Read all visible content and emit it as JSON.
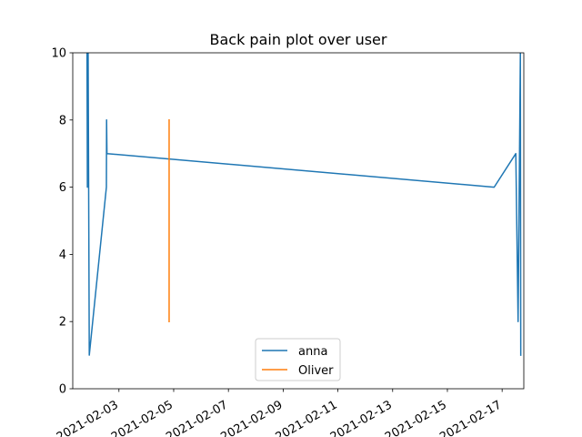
{
  "chart_data": {
    "type": "line",
    "title": "Back pain plot over user",
    "xlabel": "",
    "ylabel": "",
    "xlim": [
      "2021-02-01T07:30",
      "2021-02-17T19:00"
    ],
    "ylim": [
      0,
      10
    ],
    "x_tick_labels": [
      "2021-02-03",
      "2021-02-05",
      "2021-02-07",
      "2021-02-09",
      "2021-02-11",
      "2021-02-13",
      "2021-02-15",
      "2021-02-17"
    ],
    "y_tick_labels": [
      "0",
      "2",
      "4",
      "6",
      "8",
      "10"
    ],
    "y_ticks": [
      0,
      2,
      4,
      6,
      8,
      10
    ],
    "grid": false,
    "legend_position": "lower center",
    "series": [
      {
        "name": "anna",
        "color": "#1f77b4",
        "points": [
          [
            "2021-02-01T20:00",
            10
          ],
          [
            "2021-02-01T20:20",
            6
          ],
          [
            "2021-02-01T21:00",
            10
          ],
          [
            "2021-02-01T22:00",
            1
          ],
          [
            "2021-02-02T13:00",
            6
          ],
          [
            "2021-02-02T13:10",
            8
          ],
          [
            "2021-02-02T13:30",
            7
          ],
          [
            "2021-02-16T17:00",
            6
          ],
          [
            "2021-02-17T12:00",
            7
          ],
          [
            "2021-02-17T14:00",
            2
          ],
          [
            "2021-02-17T15:00",
            6
          ],
          [
            "2021-02-17T16:00",
            10
          ],
          [
            "2021-02-17T16:20",
            1
          ]
        ]
      },
      {
        "name": "Oliver",
        "color": "#ff7f0e",
        "points": [
          [
            "2021-02-04T20:00",
            8
          ],
          [
            "2021-02-04T20:00",
            2
          ]
        ]
      }
    ]
  }
}
